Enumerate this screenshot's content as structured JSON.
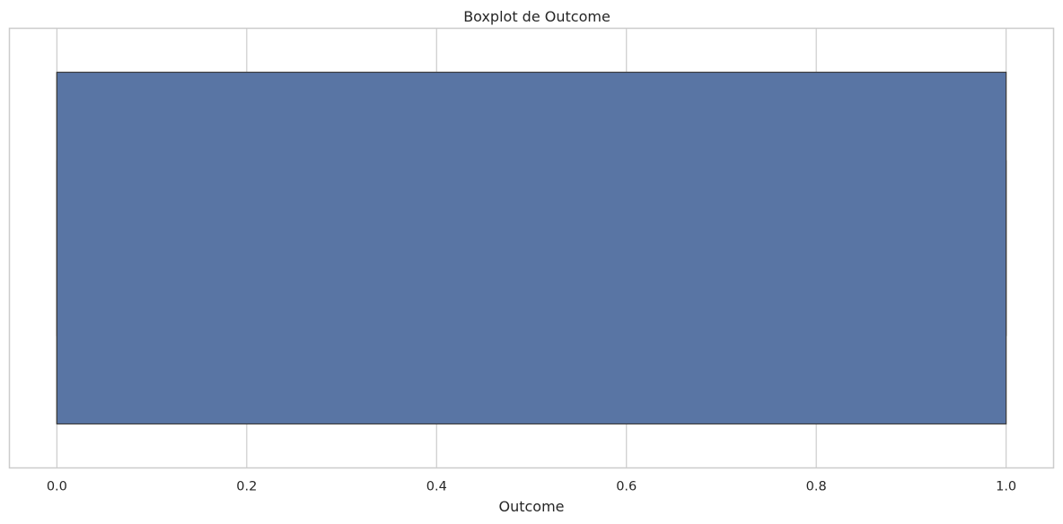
{
  "chart_data": {
    "type": "boxplot",
    "orientation": "horizontal",
    "title": "Boxplot de Outcome",
    "xlabel": "Outcome",
    "ylabel": "",
    "xlim": [
      -0.05,
      1.05
    ],
    "xticks": [
      0.0,
      0.2,
      0.4,
      0.6,
      0.8,
      1.0
    ],
    "xtick_labels": [
      "0.0",
      "0.2",
      "0.4",
      "0.6",
      "0.8",
      "1.0"
    ],
    "grid": true,
    "series": [
      {
        "whisker_low": 0,
        "q1": 0,
        "median": 0,
        "q3": 1,
        "whisker_high": 1,
        "outliers": []
      }
    ],
    "colors": {
      "box_fill": "#5975a4",
      "box_edge": "#3d3d3d",
      "grid": "#cccccc",
      "frame": "#cccccc",
      "text": "#262626"
    }
  }
}
